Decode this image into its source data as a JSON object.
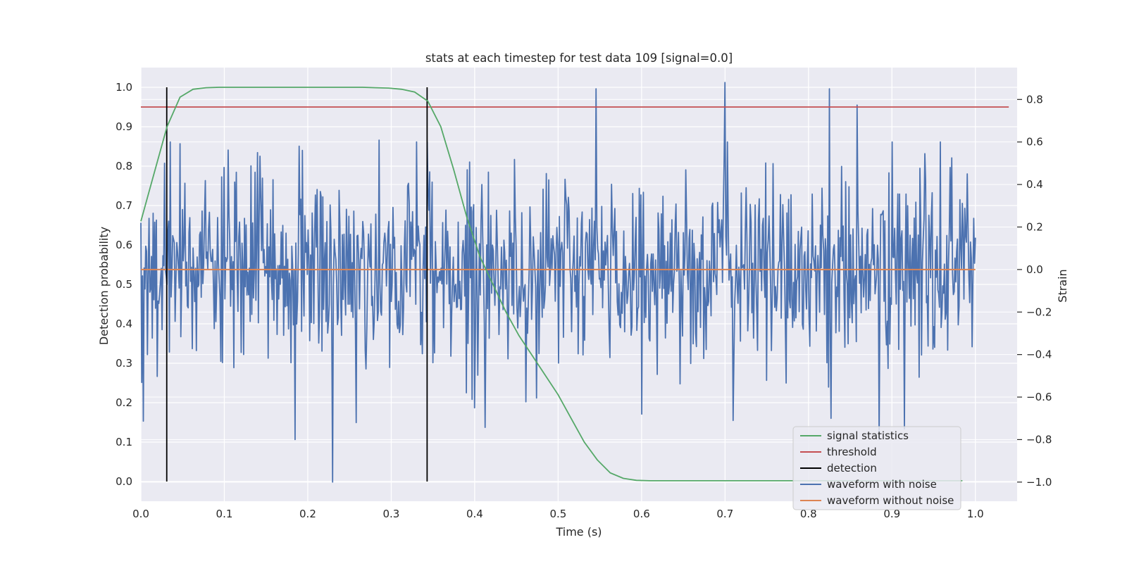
{
  "chart_data": {
    "type": "line",
    "title": "stats at each timestep for test data 109 [signal=0.0]",
    "xlabel": "Time (s)",
    "ylabel_left": "Detection probability",
    "ylabel_right": "Strain",
    "xlim": [
      -0.0,
      1.05
    ],
    "ylim_left": [
      -0.05,
      1.05
    ],
    "ylim_right": [
      -1.09,
      0.95
    ],
    "x_ticks": [
      "0.0",
      "0.1",
      "0.2",
      "0.3",
      "0.4",
      "0.5",
      "0.6",
      "0.7",
      "0.8",
      "0.9",
      "1.0"
    ],
    "y_ticks_left": [
      "0.0",
      "0.1",
      "0.2",
      "0.3",
      "0.4",
      "0.5",
      "0.6",
      "0.7",
      "0.8",
      "0.9",
      "1.0"
    ],
    "y_ticks_right": [
      "−1.0",
      "−0.8",
      "−0.6",
      "−0.4",
      "−0.2",
      "0.0",
      "0.2",
      "0.4",
      "0.6",
      "0.8"
    ],
    "grid": true,
    "legend_position": "lower right",
    "colors": {
      "signal_statistics": "#55a868",
      "threshold": "#c44e52",
      "detection": "#000000",
      "waveform_with_noise": "#4c72b0",
      "waveform_without_noise": "#dd8452",
      "background": "#eaeaf2",
      "grid": "#ffffff"
    },
    "series": [
      {
        "name": "signal statistics",
        "axis": "left",
        "x": [
          0.0,
          0.0156,
          0.0313,
          0.0469,
          0.0625,
          0.0781,
          0.0938,
          0.1094,
          0.125,
          0.1406,
          0.1563,
          0.1719,
          0.1875,
          0.2031,
          0.2188,
          0.2344,
          0.25,
          0.2656,
          0.2813,
          0.2969,
          0.3125,
          0.3281,
          0.3438,
          0.3594,
          0.375,
          0.3906,
          0.4063,
          0.4219,
          0.4375,
          0.4531,
          0.4688,
          0.4844,
          0.5,
          0.5156,
          0.5313,
          0.5469,
          0.5625,
          0.5781,
          0.5938,
          0.6094,
          0.625,
          0.6406,
          0.6563,
          0.6719,
          0.6875,
          0.7031,
          0.7188,
          0.7344,
          0.75,
          0.7656,
          0.7813,
          0.7969,
          0.8125,
          0.8281,
          0.8438,
          0.8594,
          0.875,
          0.8906,
          0.9063,
          0.9219,
          0.9375,
          0.9531,
          0.9688,
          0.9844
        ],
        "values": [
          0.66,
          0.78,
          0.9,
          0.975,
          0.995,
          0.999,
          1.0,
          1.0,
          1.0,
          1.0,
          1.0,
          1.0,
          1.0,
          1.0,
          1.0,
          1.0,
          1.0,
          1.0,
          0.999,
          0.998,
          0.995,
          0.988,
          0.965,
          0.9,
          0.79,
          0.67,
          0.57,
          0.5,
          0.43,
          0.37,
          0.32,
          0.27,
          0.22,
          0.16,
          0.1,
          0.055,
          0.022,
          0.008,
          0.003,
          0.002,
          0.002,
          0.002,
          0.002,
          0.002,
          0.002,
          0.002,
          0.002,
          0.002,
          0.002,
          0.002,
          0.002,
          0.002,
          0.002,
          0.002,
          0.002,
          0.002,
          0.002,
          0.002,
          0.002,
          0.002,
          0.002,
          0.002,
          0.002,
          0.002
        ]
      },
      {
        "name": "threshold",
        "axis": "left",
        "x": [
          0.0,
          1.04
        ],
        "values": [
          0.95,
          0.95
        ]
      },
      {
        "name": "detection",
        "axis": "left",
        "x": [
          0.031,
          0.343
        ],
        "values": [
          1.0,
          1.0
        ]
      },
      {
        "name": "waveform with noise",
        "axis": "right",
        "noise_sigma": 0.22,
        "x": [
          0.0,
          0.028,
          0.035,
          0.1,
          0.14,
          0.185,
          0.19,
          0.23,
          0.258,
          0.33,
          0.343,
          0.39,
          0.409,
          0.545,
          0.6,
          0.7,
          0.703,
          0.825,
          0.827,
          0.885,
          0.9,
          0.915,
          0.958,
          0.97,
          0.99,
          1.0
        ],
        "values": [
          0.22,
          0.5,
          0.6,
          0.48,
          0.55,
          -0.8,
          0.58,
          -1.0,
          -0.72,
          0.6,
          0.6,
          -0.58,
          0.4,
          0.85,
          -0.68,
          0.88,
          0.6,
          0.85,
          -0.7,
          -0.8,
          0.6,
          -0.75,
          0.6,
          0.48,
          0.45,
          0.15
        ]
      },
      {
        "name": "waveform without noise",
        "axis": "right",
        "x": [
          0.0,
          1.0
        ],
        "values": [
          0.0,
          0.0
        ]
      }
    ]
  }
}
